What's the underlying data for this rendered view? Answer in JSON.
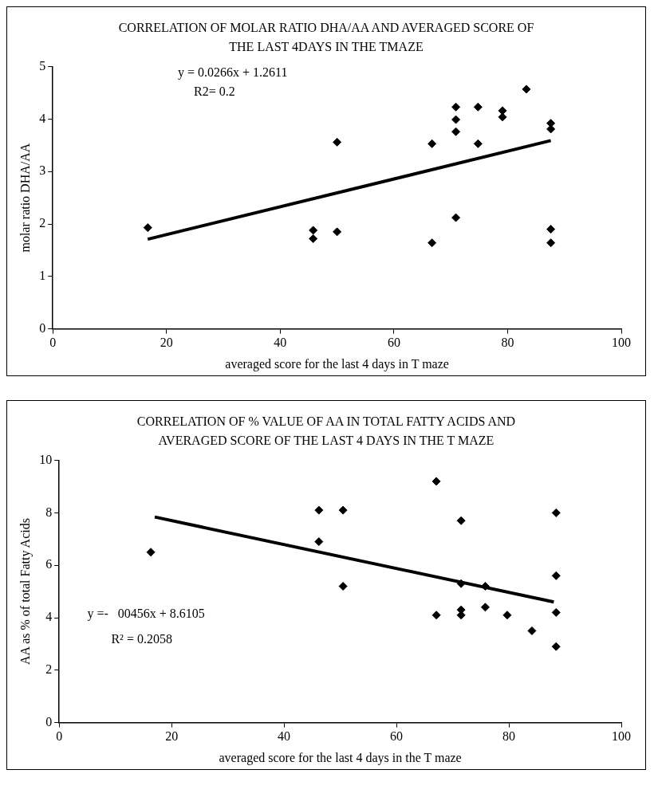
{
  "chart_data": [
    {
      "type": "scatter",
      "title": "CORRELATION OF MOLAR RATIO DHA/AA AND AVERAGED SCORE OF THE LAST 4DAYS IN THE TMAZE",
      "xlabel": "averaged score for the last 4 days in T maze",
      "ylabel": "molar ratio DHA/AA",
      "xlim": [
        0,
        100
      ],
      "xticks": [
        0,
        20,
        40,
        60,
        80,
        100
      ],
      "ylim": [
        0,
        5
      ],
      "yticks": [
        0,
        1,
        2,
        3,
        4,
        5
      ],
      "grid": false,
      "legend": false,
      "annotations": [
        "y = 0.0266x + 1.2611",
        "R2= 0.2"
      ],
      "series": [
        {
          "type": "scatter",
          "marker": "diamond",
          "color": "#000000",
          "x": [
            16.7,
            45.8,
            45.8,
            50,
            50,
            66.7,
            66.7,
            70.9,
            70.9,
            70.9,
            70.9,
            74.8,
            74.8,
            79.1,
            79.1,
            83.3,
            87.6,
            87.6,
            87.6,
            87.6
          ],
          "values": [
            1.93,
            1.88,
            1.72,
            3.56,
            1.85,
            3.53,
            1.64,
            4.23,
            3.99,
            3.76,
            2.12,
            4.23,
            3.53,
            4.16,
            4.04,
            4.57,
            3.92,
            3.81,
            1.9,
            1.64
          ]
        },
        {
          "type": "line",
          "marker": "none",
          "color": "#000000",
          "x": [
            16.7,
            87.6
          ],
          "values": [
            1.71,
            3.59
          ]
        }
      ]
    },
    {
      "type": "scatter",
      "title": "CORRELATION OF % VALUE OF AA IN TOTAL FATTY ACIDS AND AVERAGED SCORE OF THE LAST 4 DAYS IN THE T MAZE",
      "xlabel": "averaged score for the last 4 days in the T maze",
      "ylabel": "AA as % of total Fatty Acids",
      "xlim": [
        0,
        100
      ],
      "xticks": [
        0,
        20,
        40,
        60,
        80,
        100
      ],
      "ylim": [
        0,
        10
      ],
      "yticks": [
        0,
        2,
        4,
        6,
        8,
        10
      ],
      "grid": false,
      "legend": false,
      "annotations": [
        "y =-   00456x + 8.6105",
        "R² = 0.2058"
      ],
      "series": [
        {
          "type": "scatter",
          "marker": "diamond",
          "color": "#000000",
          "x": [
            16.3,
            46.2,
            46.2,
            50.5,
            50.5,
            67.1,
            67.1,
            71.5,
            71.5,
            71.5,
            71.5,
            75.8,
            75.8,
            79.7,
            84.1,
            88.4,
            88.4,
            88.4,
            88.4
          ],
          "values": [
            6.5,
            8.1,
            6.9,
            8.1,
            5.2,
            9.2,
            4.1,
            7.7,
            5.3,
            4.3,
            4.1,
            5.2,
            4.4,
            4.1,
            3.5,
            8,
            5.6,
            4.2,
            2.9
          ]
        },
        {
          "type": "line",
          "marker": "none",
          "color": "#000000",
          "x": [
            17,
            88
          ],
          "values": [
            7.84,
            4.6
          ]
        }
      ]
    }
  ]
}
